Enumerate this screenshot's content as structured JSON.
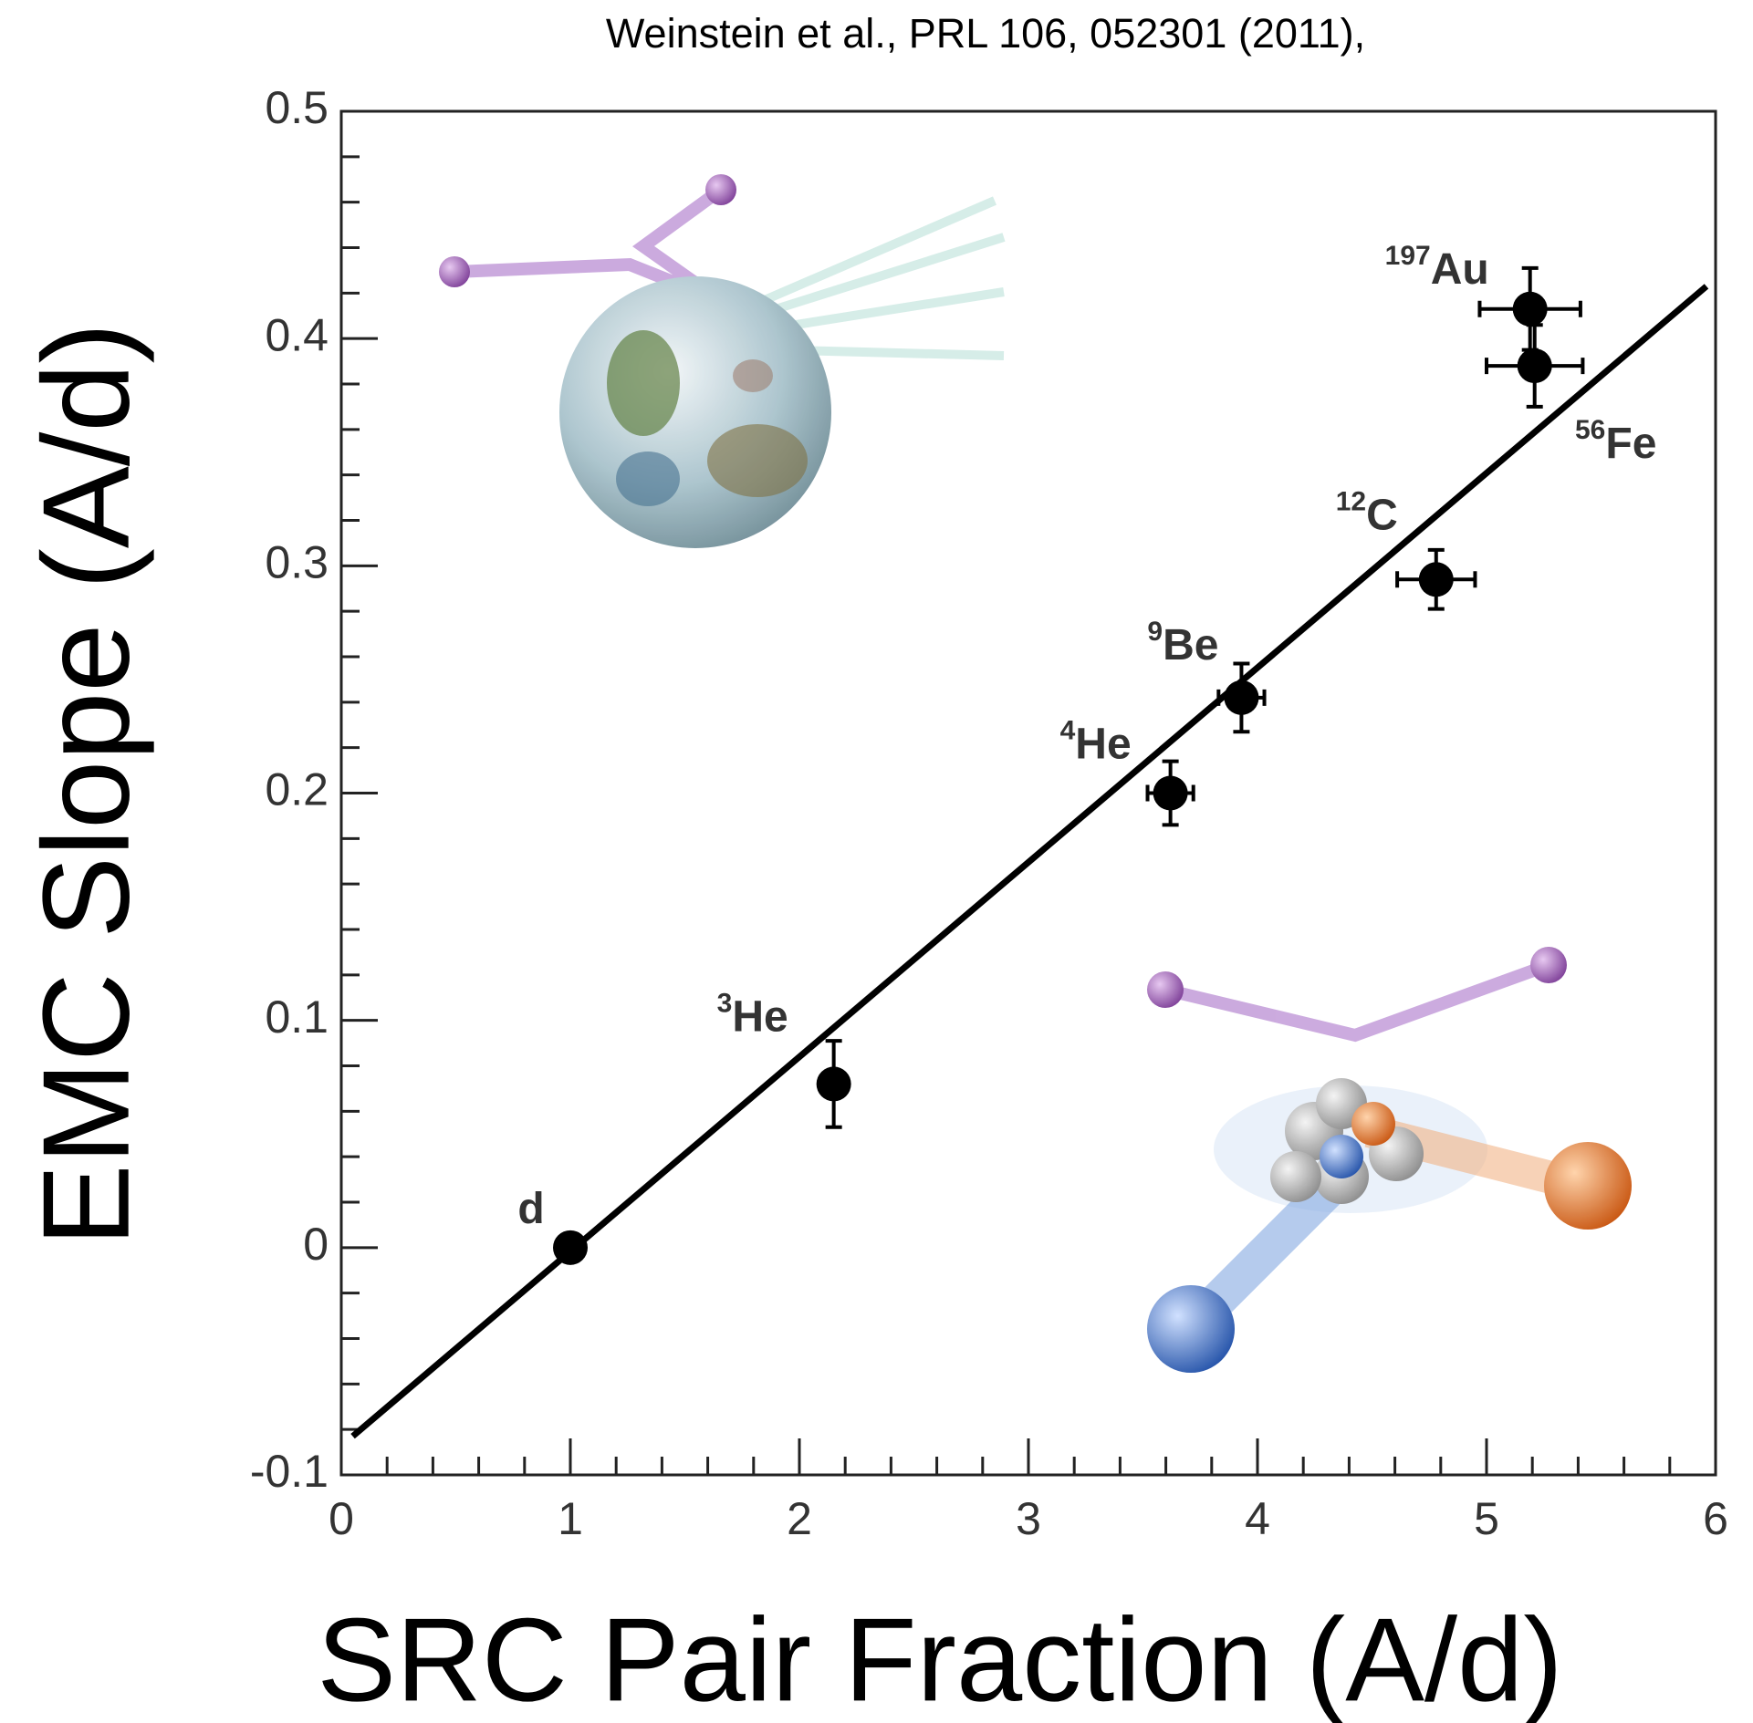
{
  "chart_data": {
    "type": "scatter",
    "title": "Weinstein et al., PRL 106, 052301 (2011),",
    "x_label": "SRC Pair Fraction (A/d)",
    "y_label": "EMC Slope (A/d)",
    "xlim": [
      0,
      6
    ],
    "ylim": [
      -0.1,
      0.5
    ],
    "xticks": [
      0,
      1,
      2,
      3,
      4,
      5,
      6
    ],
    "yticks": [
      -0.1,
      0,
      0.1,
      0.2,
      0.3,
      0.4,
      0.5
    ],
    "color": "#000000",
    "points": [
      {
        "symbol": "d",
        "x": 1.0,
        "y": 0.0,
        "x_err": 0.02,
        "y_err": 0.004
      },
      {
        "mass": "3",
        "symbol": "He",
        "x": 2.15,
        "y": 0.072,
        "x_err": 0.02,
        "y_err": 0.019
      },
      {
        "mass": "4",
        "symbol": "He",
        "x": 3.62,
        "y": 0.2,
        "x_err": 0.1,
        "y_err": 0.014
      },
      {
        "mass": "9",
        "symbol": "Be",
        "x": 3.93,
        "y": 0.242,
        "x_err": 0.1,
        "y_err": 0.015
      },
      {
        "mass": "12",
        "symbol": "C",
        "x": 4.78,
        "y": 0.294,
        "x_err": 0.17,
        "y_err": 0.013
      },
      {
        "mass": "56",
        "symbol": "Fe",
        "x": 5.21,
        "y": 0.388,
        "x_err": 0.21,
        "y_err": 0.018
      },
      {
        "mass": "197",
        "symbol": "Au",
        "x": 5.19,
        "y": 0.413,
        "x_err": 0.22,
        "y_err": 0.018
      }
    ],
    "fit_line": {
      "x": [
        0.05,
        5.96
      ],
      "y": [
        -0.083,
        0.423
      ]
    }
  }
}
